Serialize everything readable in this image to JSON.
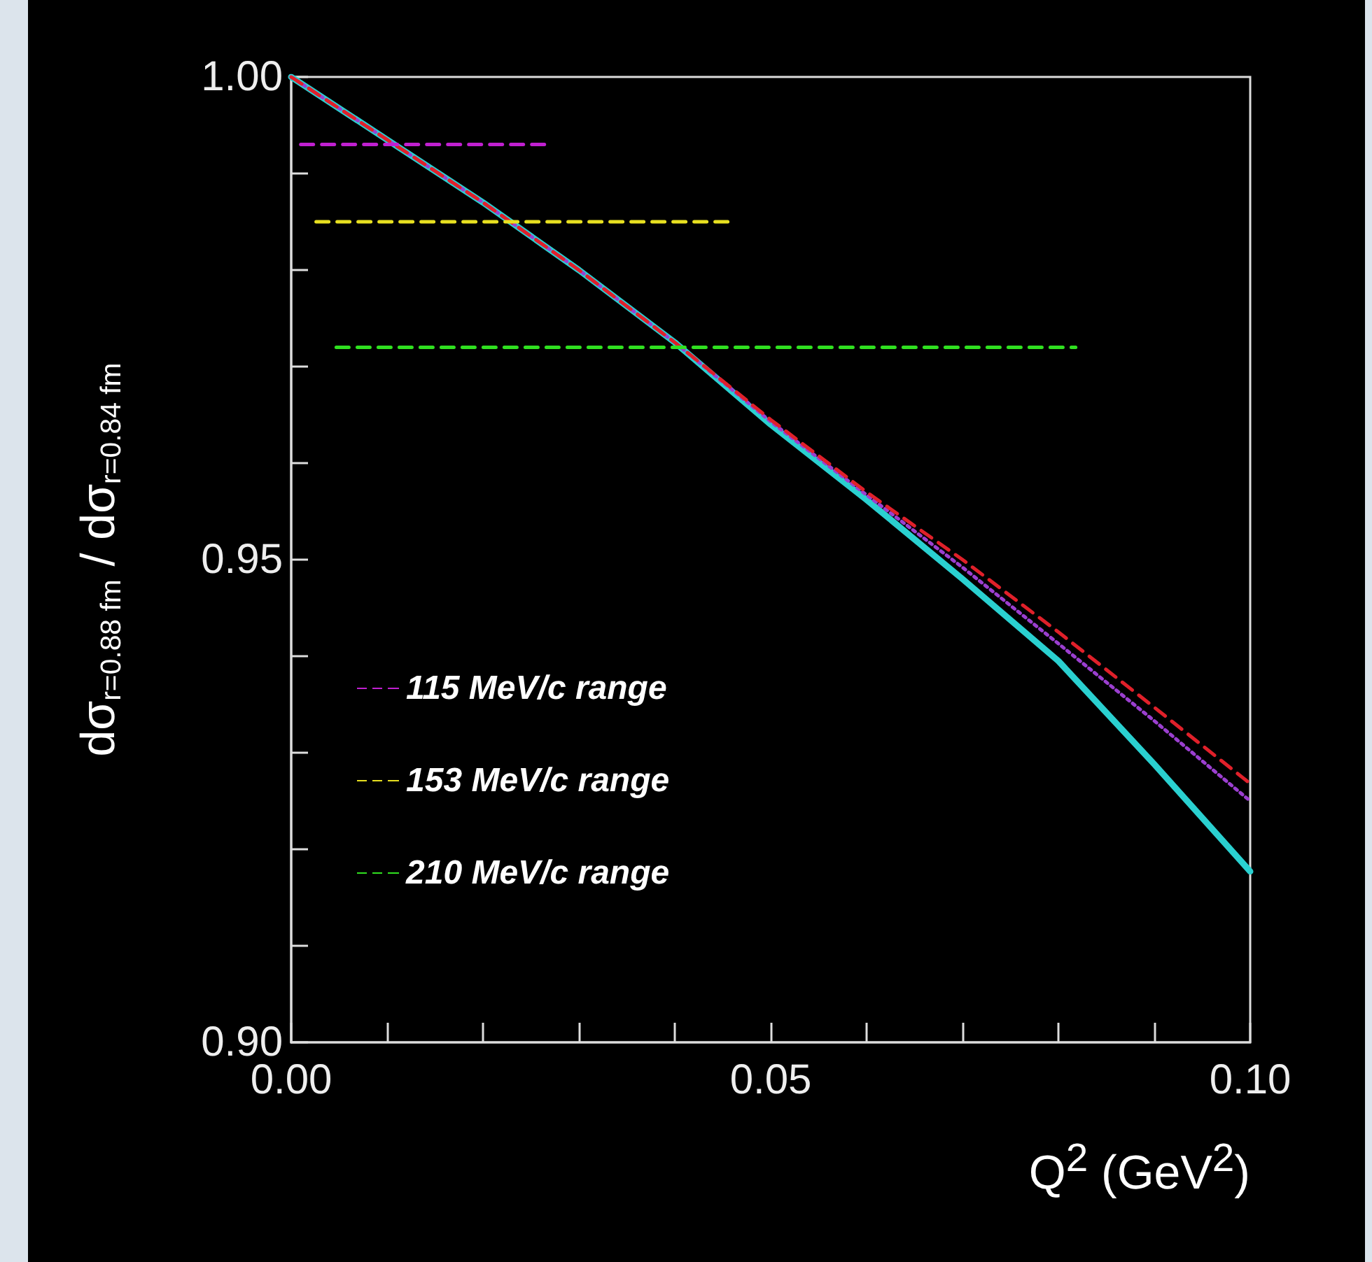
{
  "chart_data": {
    "type": "line",
    "xlabel": "Q$^{2}$ (GeV$^{2}$)",
    "ylabel": "dσ$_{r=0.88 fm}$ / dσ$_{r=0.84 fm}$",
    "xlim": [
      0,
      0.1
    ],
    "ylim": [
      0.9,
      1.0
    ],
    "xticks": [
      {
        "value": 0,
        "label": "0.00"
      },
      {
        "value": 0.01,
        "label": null
      },
      {
        "value": 0.02,
        "label": null
      },
      {
        "value": 0.03,
        "label": null
      },
      {
        "value": 0.04,
        "label": null
      },
      {
        "value": 0.05,
        "label": "0.05"
      },
      {
        "value": 0.06,
        "label": null
      },
      {
        "value": 0.07,
        "label": null
      },
      {
        "value": 0.08,
        "label": null
      },
      {
        "value": 0.09,
        "label": null
      },
      {
        "value": 0.1,
        "label": "0.10"
      }
    ],
    "yticks": [
      {
        "value": 0.9,
        "label": "0.90"
      },
      {
        "value": 0.91,
        "label": null
      },
      {
        "value": 0.92,
        "label": null
      },
      {
        "value": 0.93,
        "label": null
      },
      {
        "value": 0.94,
        "label": null
      },
      0.95,
      {
        "value": 0.96,
        "label": null
      },
      {
        "value": 0.97,
        "label": null
      },
      {
        "value": 0.98,
        "label": null
      },
      {
        "value": 0.99,
        "label": null
      },
      {
        "value": 1.0,
        "label": "1.00"
      }
    ],
    "grid": false,
    "legend": "left",
    "marker": "none",
    "series": [
      {
        "color": "#2ad0d0",
        "line_style": "solid",
        "x": [
          0,
          0.01,
          0.02,
          0.03,
          0.04,
          0.05,
          0.06,
          0.07,
          0.08,
          0.09,
          0.1
        ],
        "values": [
          1.0,
          0.9935,
          0.987,
          0.98,
          0.9725,
          0.964,
          0.9562,
          0.948,
          0.9395,
          0.9288,
          0.9177
        ]
      },
      {
        "color": "#9b3fd0",
        "line_style": "dotted",
        "x": [
          0,
          0.01,
          0.02,
          0.03,
          0.04,
          0.05,
          0.06,
          0.07,
          0.08,
          0.09,
          0.1
        ],
        "values": [
          1.0,
          0.9935,
          0.987,
          0.98,
          0.9725,
          0.9643,
          0.9567,
          0.9492,
          0.9413,
          0.9333,
          0.925
        ]
      },
      {
        "color": "#e0202a",
        "line_style": "dashed",
        "x": [
          0,
          0.01,
          0.02,
          0.03,
          0.04,
          0.05,
          0.06,
          0.07,
          0.08,
          0.09,
          0.1
        ],
        "values": [
          1.0,
          0.9935,
          0.987,
          0.98,
          0.9725,
          0.9645,
          0.957,
          0.95,
          0.9425,
          0.9347,
          0.9268
        ]
      },
      {
        "name": "115 MeV/c range",
        "color": "#c020d0",
        "line_style": "dashed",
        "x": [
          0.001,
          0.027
        ],
        "values": [
          0.993,
          0.993
        ]
      },
      {
        "name": "153 MeV/c range",
        "color": "#e8e020",
        "line_style": "dashed",
        "x": [
          0.0026,
          0.046
        ],
        "values": [
          0.985,
          0.985
        ]
      },
      {
        "name": "210 MeV/c range",
        "color": "#30e020",
        "line_style": "dashed",
        "x": [
          0.0047,
          0.0818
        ],
        "values": [
          0.972,
          0.972
        ]
      }
    ]
  }
}
